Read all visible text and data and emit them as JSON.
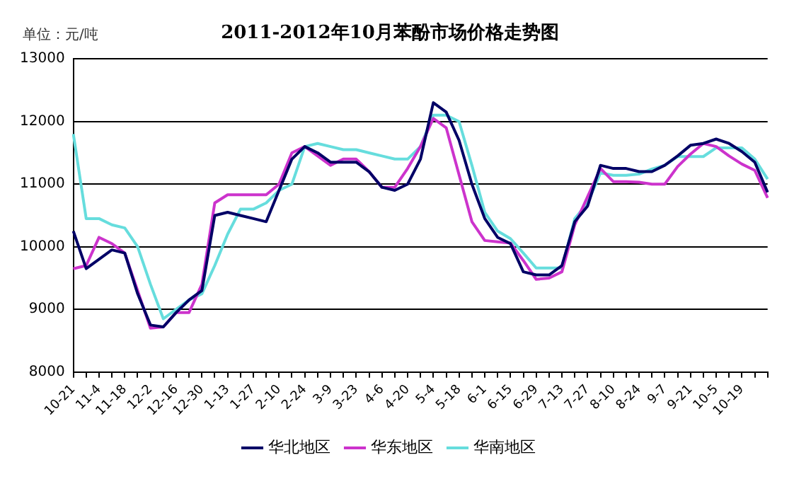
{
  "chart_data": {
    "type": "line",
    "title": "2011-2012年10月苯酚市场价格走势图",
    "annotations": [
      "单位：元/吨"
    ],
    "categories": [
      "10-21",
      null,
      "11-4",
      null,
      "11-18",
      null,
      "12-2",
      null,
      "12-16",
      null,
      "12-30",
      null,
      "1-13",
      null,
      "1-27",
      null,
      "2-10",
      null,
      "2-24",
      null,
      "3-9",
      null,
      "3-23",
      null,
      "4-6",
      null,
      "4-20",
      null,
      "5-4",
      null,
      "5-18",
      null,
      "6-1",
      null,
      "6-15",
      null,
      "6-29",
      null,
      "7-13",
      null,
      "7-27",
      null,
      "8-10",
      null,
      "8-24",
      null,
      "9-7",
      null,
      "9-21",
      null,
      "10-5",
      null,
      "10-19",
      null,
      null
    ],
    "series": [
      {
        "name": "华北地区",
        "color": "#000066",
        "values": [
          10250,
          9650,
          9800,
          9950,
          9900,
          9250,
          8750,
          8720,
          8950,
          9150,
          9300,
          10500,
          10550,
          10500,
          10450,
          10400,
          10900,
          11400,
          11600,
          11500,
          11350,
          11350,
          11350,
          11200,
          10950,
          10900,
          11000,
          11400,
          12300,
          12150,
          11700,
          11000,
          10450,
          10150,
          10050,
          9600,
          9550,
          9550,
          9700,
          10400,
          10650,
          11300,
          11250,
          11250,
          11200,
          11200,
          11300,
          11450,
          11620,
          11650,
          11720,
          11650,
          11520,
          11350,
          10870
        ]
      },
      {
        "name": "华东地区",
        "color": "#cc33cc",
        "values": [
          9650,
          9700,
          10150,
          10050,
          9900,
          9300,
          8700,
          8720,
          8950,
          8950,
          9400,
          10700,
          10830,
          10830,
          10830,
          10830,
          11000,
          11500,
          11600,
          11450,
          11300,
          11400,
          11400,
          11200,
          10950,
          10950,
          11250,
          11600,
          12050,
          11900,
          11150,
          10400,
          10100,
          10080,
          10060,
          9780,
          9480,
          9500,
          9600,
          10350,
          10800,
          11250,
          11040,
          11040,
          11030,
          11000,
          11000,
          11280,
          11480,
          11650,
          11600,
          11450,
          11320,
          11220,
          10780
        ]
      },
      {
        "name": "华南地区",
        "color": "#66dddd",
        "values": [
          11800,
          10450,
          10450,
          10350,
          10300,
          10000,
          9400,
          8850,
          9000,
          9150,
          9250,
          9700,
          10200,
          10600,
          10600,
          10700,
          10900,
          11000,
          11600,
          11650,
          11600,
          11550,
          11550,
          11500,
          11450,
          11400,
          11400,
          11600,
          12100,
          12100,
          12000,
          11300,
          10550,
          10250,
          10130,
          9900,
          9660,
          9660,
          9660,
          10450,
          10700,
          11180,
          11140,
          11140,
          11160,
          11240,
          11300,
          11440,
          11440,
          11440,
          11580,
          11580,
          11580,
          11400,
          11080
        ]
      }
    ],
    "ylim": [
      8000,
      13000
    ],
    "yticks": [
      8000,
      9000,
      10000,
      11000,
      12000,
      13000
    ],
    "grid": "y",
    "legend": "bottom",
    "marker": "none",
    "line_style": "solid"
  }
}
